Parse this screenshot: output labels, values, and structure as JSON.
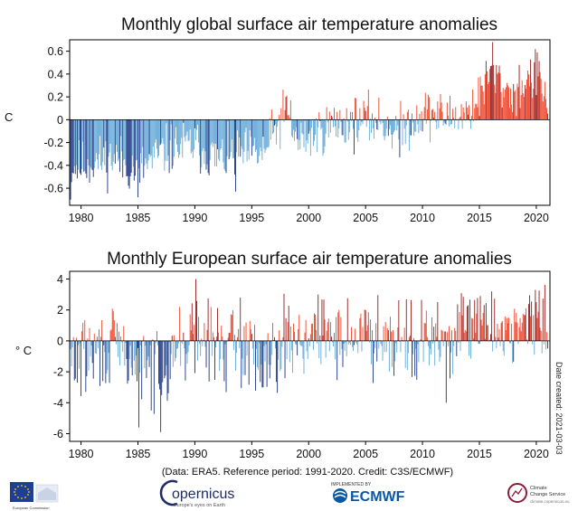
{
  "colors": {
    "warm": "#ef3b1f",
    "warm_dark": "#8e1010",
    "cool": "#5ea6d6",
    "cool_dark": "#0f2b7d"
  },
  "chart_data": [
    {
      "type": "bar",
      "title": "Monthly global surface air temperature anomalies",
      "ylabel": "C",
      "xlabel": "",
      "xlim": [
        1979,
        2021.2
      ],
      "ylim": [
        -0.75,
        0.7
      ],
      "yticks": [
        -0.6,
        -0.4,
        -0.2,
        0,
        0.2,
        0.4,
        0.6
      ],
      "ytick_labels": [
        "-0.6",
        "-0.4",
        "-0.2",
        "0",
        "0.2",
        "0.4",
        "0.6"
      ],
      "xticks": [
        1980,
        1985,
        1990,
        1995,
        2000,
        2005,
        2010,
        2015,
        2020
      ],
      "xtick_labels": [
        "1980",
        "1985",
        "1990",
        "1995",
        "2000",
        "2005",
        "2010",
        "2015",
        "2020"
      ],
      "x_start": 1979.0,
      "x_end": 2021.08,
      "series": [
        {
          "type": "line",
          "x": [
            1979,
            1983,
            1984,
            1985,
            1987,
            1988,
            1990,
            1992,
            1994,
            1996,
            1998,
            1999,
            2000,
            2002,
            2004,
            2006,
            2008,
            2010,
            2012,
            2014,
            2015,
            2016,
            2017,
            2018,
            2019,
            2020,
            2021
          ],
          "values": [
            -0.42,
            -0.33,
            -0.4,
            -0.45,
            -0.3,
            -0.25,
            -0.22,
            -0.35,
            -0.3,
            -0.3,
            0.08,
            -0.2,
            -0.15,
            -0.05,
            -0.02,
            -0.01,
            -0.1,
            0.06,
            0.02,
            0.06,
            0.2,
            0.42,
            0.3,
            0.22,
            0.33,
            0.38,
            0.15
          ]
        }
      ],
      "extremes": [
        {
          "x": 1979.1,
          "value": -0.7
        },
        {
          "x": 1985.0,
          "value": -0.68
        },
        {
          "x": 1993.6,
          "value": -0.63
        },
        {
          "x": 1998.4,
          "value": 0.17
        },
        {
          "x": 2008.0,
          "value": -0.33
        },
        {
          "x": 2016.2,
          "value": 0.68
        },
        {
          "x": 2020.1,
          "value": 0.59
        }
      ]
    },
    {
      "type": "bar",
      "title": "Monthly European surface air temperature anomalies",
      "ylabel": "° C",
      "xlabel": "",
      "xlim": [
        1979,
        2021.2
      ],
      "ylim": [
        -6.5,
        4.5
      ],
      "yticks": [
        -6,
        -4,
        -2,
        0,
        2,
        4
      ],
      "ytick_labels": [
        "-6",
        "-4",
        "-2",
        "0",
        "2",
        "4"
      ],
      "xticks": [
        1980,
        1985,
        1990,
        1995,
        2000,
        2005,
        2010,
        2015,
        2020
      ],
      "xtick_labels": [
        "1980",
        "1985",
        "1990",
        "1995",
        "2000",
        "2005",
        "2010",
        "2015",
        "2020"
      ],
      "x_start": 1979.0,
      "x_end": 2021.08,
      "series": [
        {
          "type": "line",
          "x": [
            1979,
            1981,
            1983,
            1985,
            1987,
            1989,
            1990,
            1992,
            1994,
            1996,
            1998,
            2000,
            2002,
            2004,
            2006,
            2008,
            2010,
            2012,
            2014,
            2016,
            2018,
            2020,
            2021
          ],
          "values": [
            -1.2,
            -0.9,
            -0.4,
            -1.5,
            -1.4,
            -0.2,
            0.3,
            -0.3,
            -0.5,
            -1.0,
            0.1,
            0.3,
            0.35,
            0.2,
            0.5,
            0.4,
            -0.3,
            0.1,
            0.8,
            0.6,
            0.9,
            1.1,
            0.5
          ]
        }
      ],
      "extremes": [
        {
          "x": 1985.1,
          "value": -5.6
        },
        {
          "x": 1986.2,
          "value": -4.5
        },
        {
          "x": 1987.0,
          "value": -5.9
        },
        {
          "x": 1990.1,
          "value": 4.0
        },
        {
          "x": 1994.0,
          "value": 2.8
        },
        {
          "x": 2012.1,
          "value": -4.0
        },
        {
          "x": 2015.1,
          "value": 2.9
        },
        {
          "x": 2016.1,
          "value": 3.2
        },
        {
          "x": 2019.9,
          "value": 3.3
        }
      ]
    }
  ],
  "credit": "(Data: ERA5.  Reference period: 1991-2020.  Credit: C3S/ECMWF)",
  "date_created": "Date created: 2021-03-03",
  "logos": {
    "copernicus_name": "opernicus",
    "copernicus_tagline": "Europe's eyes on Earth",
    "ecmwf_implemented": "IMPLEMENTED BY",
    "ecmwf_name": "ECMWF",
    "ec_caption": "European Commission",
    "ccs_name_1": "Climate",
    "ccs_name_2": "Change Service",
    "ccs_url": "climate.copernicus.eu"
  }
}
